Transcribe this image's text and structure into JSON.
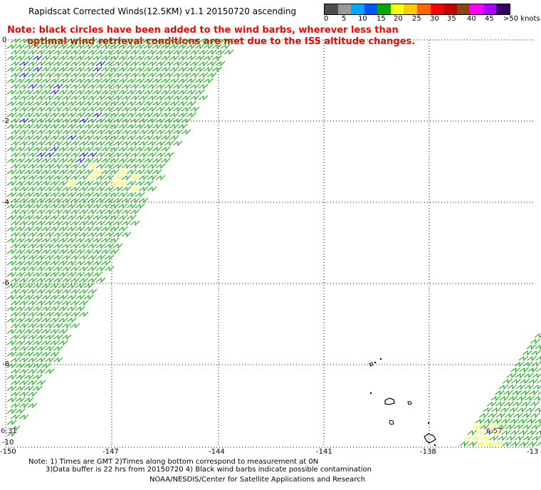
{
  "title": "Rapidscat Corrected Winds(12.5KM) v1.1 20150720 ascending",
  "note": {
    "line1": "Note: black circles have been added to the wind barbs, wherever less than",
    "line2": "optimal wind retrieval conditions are met due to the ISS altitude changes."
  },
  "legend": {
    "unit": "knots",
    "labels": [
      "0",
      "5",
      "10",
      "15",
      "20",
      "25",
      "30",
      "35",
      "40",
      "45",
      ">50 knots"
    ],
    "colors": [
      "#4d4d4d",
      "#999999",
      "#00aaff",
      "#0055ff",
      "#00aa00",
      "#ffff00",
      "#ffcc00",
      "#ff6600",
      "#ff0000",
      "#c00000",
      "#8b4513",
      "#ff00ff",
      "#aa00ff",
      "#330066"
    ]
  },
  "axes": {
    "x_ticks": [
      "-150",
      "-147",
      "-144",
      "-141",
      "-138",
      "-13"
    ],
    "y_ticks": [
      "0",
      "-2",
      "-4",
      "-6",
      "-8",
      "-10"
    ]
  },
  "timestamps": {
    "left": "6:31",
    "right": "6:57"
  },
  "footer": {
    "line1": "Note: 1) Times are GMT 2)Times along bottom correspond to measurement at 0N",
    "line2": "3)Data buffer is 22 hrs from 20150720 4) Black wind barbs indicate possible contamination",
    "line3": "NOAA/NESDIS/Center for Satellite Applications and Research"
  },
  "colors": {
    "barb_green": "#00aa00",
    "barb_yellow": "#ffff00",
    "barb_blue": "#0000cc",
    "note_red": "#ff0000",
    "timestamp_purple": "#800080"
  }
}
